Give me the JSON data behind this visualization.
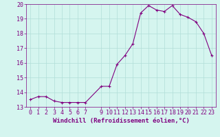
{
  "x": [
    0,
    1,
    2,
    3,
    4,
    5,
    6,
    7,
    9,
    10,
    11,
    12,
    13,
    14,
    15,
    16,
    17,
    18,
    19,
    20,
    21,
    22,
    23
  ],
  "y": [
    13.5,
    13.7,
    13.7,
    13.4,
    13.3,
    13.3,
    13.3,
    13.3,
    14.4,
    14.4,
    15.9,
    16.5,
    17.3,
    19.4,
    19.9,
    19.6,
    19.5,
    19.9,
    19.3,
    19.1,
    18.8,
    18.0,
    16.5
  ],
  "line_color": "#800080",
  "marker": "+",
  "marker_size": 3,
  "marker_linewidth": 0.8,
  "line_width": 0.8,
  "bg_color": "#d5f5ef",
  "grid_color": "#b0ddd8",
  "xlabel": "Windchill (Refroidissement éolien,°C)",
  "xlim": [
    -0.5,
    23.5
  ],
  "ylim": [
    13,
    20
  ],
  "yticks": [
    13,
    14,
    15,
    16,
    17,
    18,
    19,
    20
  ],
  "xticks": [
    0,
    1,
    2,
    3,
    4,
    5,
    6,
    7,
    9,
    10,
    11,
    12,
    13,
    14,
    15,
    16,
    17,
    18,
    19,
    20,
    21,
    22,
    23
  ],
  "tick_label_color": "#800080",
  "xlabel_color": "#800080",
  "xlabel_fontsize": 6.5,
  "tick_fontsize": 6.0,
  "spine_color": "#800080"
}
